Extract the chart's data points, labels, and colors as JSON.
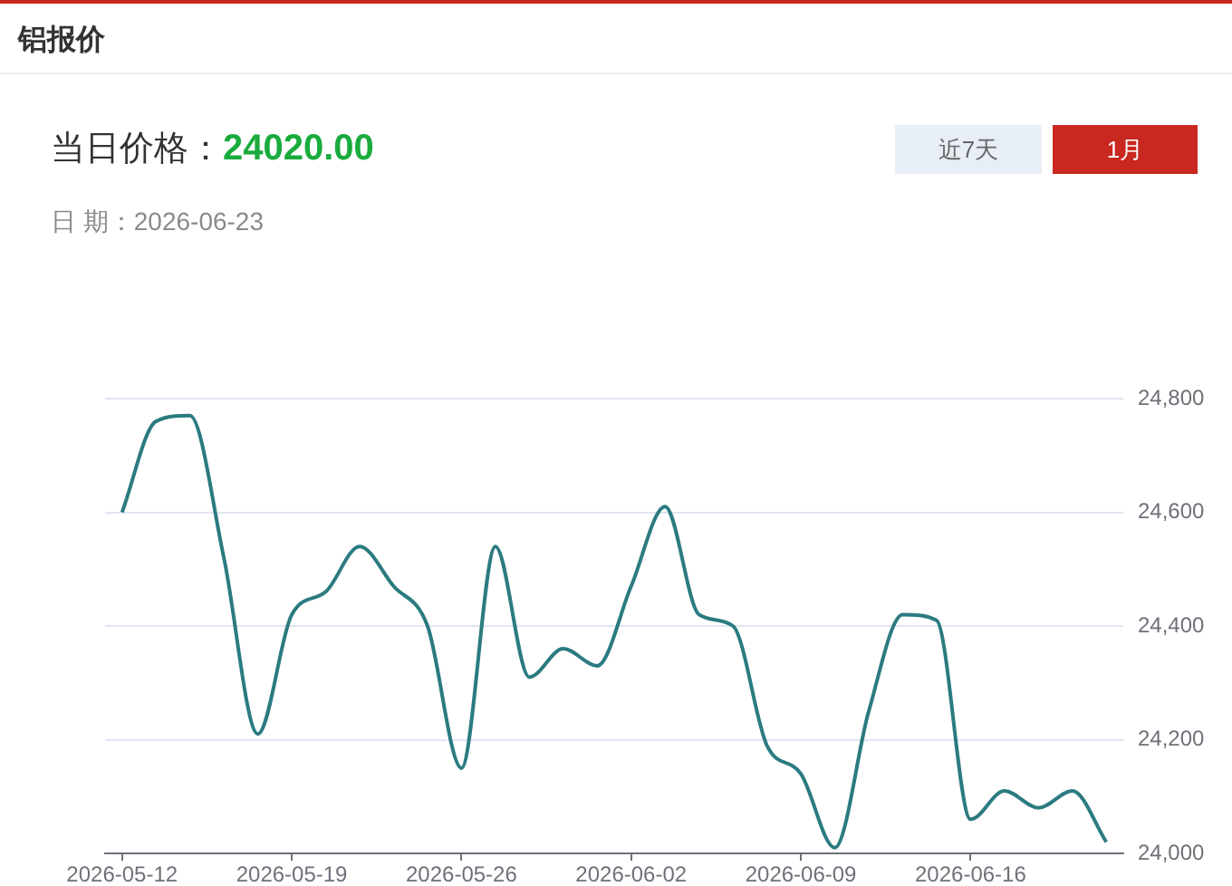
{
  "chart_data": {
    "type": "line",
    "title": "铝报价",
    "annotations": [
      "当日价格：",
      "24020.00",
      "日 期：2026-06-23",
      "近7天",
      "1月"
    ],
    "categories": [
      "2026-05-12",
      null,
      null,
      null,
      null,
      "2026-05-19",
      null,
      null,
      null,
      null,
      "2026-05-26",
      null,
      null,
      null,
      null,
      "2026-06-02",
      null,
      null,
      null,
      null,
      "2026-06-09",
      null,
      null,
      null,
      null,
      "2026-06-16",
      null,
      null,
      null,
      null
    ],
    "values": [
      24600,
      24760,
      24770,
      24520,
      24210,
      24420,
      24460,
      24540,
      24470,
      24400,
      24150,
      24540,
      24310,
      24360,
      24330,
      24470,
      24610,
      24420,
      24400,
      24190,
      24140,
      24010,
      24250,
      24420,
      24410,
      24060,
      24110,
      24080,
      24110,
      24020
    ],
    "color": "#2b7b80",
    "ylim": [
      24000,
      24800
    ],
    "yticks": [
      {
        "value": 24000,
        "label": "24,000"
      },
      {
        "value": 24200,
        "label": "24,200"
      },
      {
        "value": 24400,
        "label": "24,400"
      },
      {
        "value": 24600,
        "label": "24,600"
      },
      {
        "value": 24800,
        "label": "24,800"
      }
    ],
    "grid": "y",
    "legend": false,
    "marker": "none",
    "line_style": "solid"
  }
}
